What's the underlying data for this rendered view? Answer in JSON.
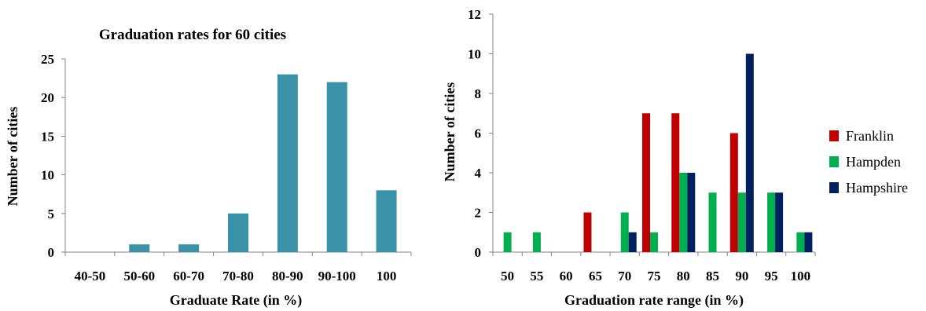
{
  "chart_data": [
    {
      "type": "bar",
      "title": "Graduation rates for 60 cities",
      "xlabel": "Graduate Rate (in %)",
      "ylabel": "Number of cities",
      "categories": [
        "40-50",
        "50-60",
        "60-70",
        "70-80",
        "80-90",
        "90-100",
        "100"
      ],
      "values": [
        0,
        1,
        1,
        5,
        23,
        22,
        8
      ],
      "ylim": [
        0,
        25
      ],
      "yticks": [
        "0",
        "5",
        "10",
        "15",
        "20",
        "25"
      ],
      "color": "#3a92a8",
      "grid": false,
      "legend": "none"
    },
    {
      "type": "bar",
      "title": "",
      "xlabel": "Graduation rate range (in %)",
      "ylabel": "Number of cities",
      "categories": [
        "50",
        "55",
        "60",
        "65",
        "70",
        "75",
        "80",
        "85",
        "90",
        "95",
        "100"
      ],
      "ylim": [
        0,
        12
      ],
      "yticks": [
        "0",
        "2",
        "4",
        "6",
        "8",
        "10",
        "12"
      ],
      "grid": false,
      "legend": "right",
      "series": [
        {
          "name": "Franklin",
          "color": "#c00000",
          "values": [
            0,
            0,
            0,
            2,
            0,
            7,
            7,
            0,
            6,
            0,
            0
          ]
        },
        {
          "name": "Hampden",
          "color": "#00b050",
          "values": [
            1,
            1,
            0,
            0,
            2,
            1,
            4,
            3,
            3,
            3,
            1
          ]
        },
        {
          "name": "Hampshire",
          "color": "#002060",
          "values": [
            0,
            0,
            0,
            0,
            1,
            0,
            4,
            0,
            10,
            3,
            1
          ]
        }
      ]
    }
  ]
}
